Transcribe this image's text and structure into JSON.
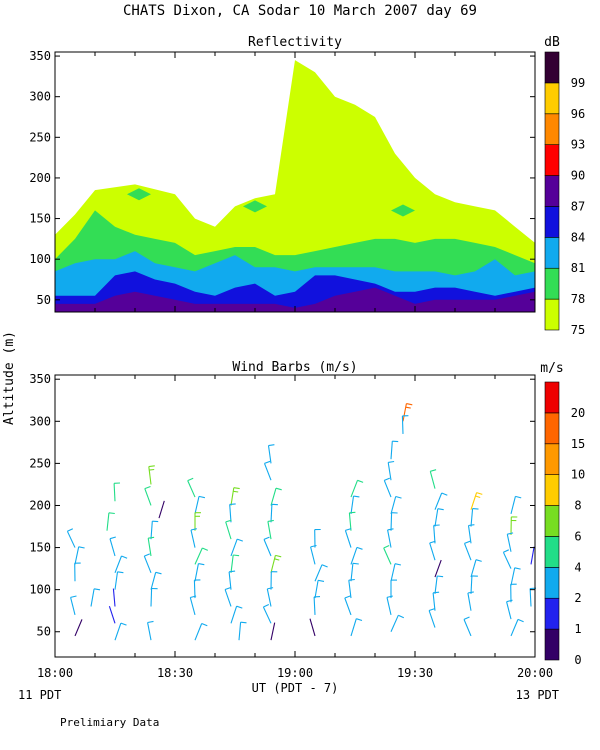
{
  "header": {
    "title": "CHATS Dixon, CA  Sodar  10 March 2007  day  69"
  },
  "shared_axes": {
    "ylabel": "Altitude (m)",
    "xlabel": "UT  (PDT - 7)",
    "x_tick_labels": [
      "18:00",
      "18:30",
      "19:00",
      "19:30",
      "20:00"
    ],
    "x_left_note": "11 PDT",
    "x_right_note": "13 PDT"
  },
  "footer": {
    "note": "Prelimiary Data"
  },
  "chart_data": [
    {
      "type": "heatmap",
      "title": "Reflectivity",
      "x_range": [
        "18:00",
        "20:00"
      ],
      "ylim": [
        35,
        355
      ],
      "y_ticks": [
        50,
        100,
        150,
        200,
        250,
        300,
        350
      ],
      "colorbar": {
        "unit": "dB",
        "levels": [
          75,
          78,
          81,
          84,
          87,
          90,
          93,
          96,
          99
        ],
        "colors": [
          "#ccff00",
          "#33dd55",
          "#11aaee",
          "#1111dd",
          "#550099",
          "#ff0000",
          "#ff8800",
          "#ffcc00",
          "#330033"
        ]
      },
      "contours": [
        {
          "level": 75,
          "x_minutes": [
            0,
            5,
            10,
            20,
            30,
            35,
            40,
            45,
            50,
            55,
            60,
            65,
            70,
            75,
            80,
            85,
            90,
            95,
            100,
            105,
            110,
            115,
            120
          ],
          "top_m": [
            130,
            155,
            185,
            192,
            180,
            150,
            140,
            165,
            175,
            180,
            345,
            330,
            300,
            290,
            275,
            230,
            200,
            180,
            170,
            165,
            160,
            140,
            120
          ]
        },
        {
          "level": 78,
          "x_minutes": [
            0,
            5,
            10,
            15,
            20,
            25,
            30,
            35,
            40,
            45,
            50,
            55,
            60,
            65,
            70,
            75,
            80,
            85,
            90,
            95,
            100,
            105,
            110,
            115,
            120
          ],
          "top_m": [
            100,
            125,
            160,
            140,
            130,
            125,
            120,
            105,
            110,
            115,
            115,
            105,
            105,
            110,
            115,
            120,
            125,
            125,
            120,
            125,
            125,
            120,
            115,
            105,
            95
          ]
        },
        {
          "level": 81,
          "x_minutes": [
            0,
            5,
            10,
            15,
            20,
            25,
            30,
            35,
            40,
            45,
            50,
            55,
            60,
            65,
            70,
            75,
            80,
            85,
            90,
            95,
            100,
            105,
            110,
            115,
            120
          ],
          "top_m": [
            85,
            95,
            100,
            100,
            110,
            95,
            90,
            85,
            95,
            105,
            90,
            90,
            85,
            90,
            90,
            90,
            90,
            85,
            85,
            85,
            80,
            85,
            100,
            80,
            85
          ]
        },
        {
          "level": 84,
          "x_minutes": [
            0,
            5,
            10,
            15,
            20,
            25,
            30,
            35,
            40,
            45,
            50,
            55,
            60,
            65,
            70,
            75,
            80,
            85,
            90,
            95,
            100,
            105,
            110,
            115,
            120
          ],
          "top_m": [
            55,
            55,
            55,
            80,
            85,
            75,
            70,
            60,
            55,
            65,
            70,
            55,
            60,
            80,
            80,
            75,
            70,
            60,
            60,
            65,
            65,
            60,
            55,
            60,
            65
          ]
        },
        {
          "level": 87,
          "x_minutes": [
            0,
            5,
            10,
            15,
            20,
            25,
            30,
            35,
            40,
            45,
            50,
            55,
            60,
            65,
            70,
            75,
            80,
            85,
            90,
            95,
            100,
            105,
            110,
            115,
            120
          ],
          "top_m": [
            45,
            45,
            45,
            55,
            60,
            55,
            50,
            45,
            45,
            45,
            45,
            45,
            40,
            45,
            55,
            60,
            65,
            55,
            45,
            50,
            50,
            50,
            50,
            55,
            60
          ]
        }
      ],
      "islands": [
        {
          "level": 78,
          "x_minutes": 21,
          "y_m": 180
        },
        {
          "level": 78,
          "x_minutes": 50,
          "y_m": 165
        },
        {
          "level": 78,
          "x_minutes": 87,
          "y_m": 160
        }
      ]
    },
    {
      "type": "scatter",
      "subtype": "wind_barbs",
      "title": "Wind Barbs (m/s)",
      "x_range": [
        "18:00",
        "20:00"
      ],
      "ylim": [
        20,
        355
      ],
      "y_ticks": [
        50,
        100,
        150,
        200,
        250,
        300,
        350
      ],
      "colorbar": {
        "unit": "m/s",
        "levels": [
          0,
          1,
          2,
          4,
          6,
          8,
          10,
          15,
          20
        ],
        "colors": [
          "#330066",
          "#2222ee",
          "#11aaee",
          "#22dd88",
          "#77dd22",
          "#ffcc00",
          "#ff9900",
          "#ff6600",
          "#ee0000"
        ]
      },
      "columns_minutes": [
        5,
        10,
        15,
        20,
        25,
        30,
        35,
        40,
        45,
        50,
        55,
        60,
        65,
        70,
        75,
        80,
        85,
        90,
        95,
        100,
        105,
        110,
        115
      ],
      "heights_m": [
        40,
        60,
        80,
        100,
        120,
        140,
        160,
        180,
        200,
        220,
        240,
        260,
        280,
        300
      ],
      "barbs": [
        {
          "x": 5,
          "y": 150,
          "s": 2
        },
        {
          "x": 5,
          "y": 130,
          "s": 2
        },
        {
          "x": 5,
          "y": 110,
          "s": 2
        },
        {
          "x": 5,
          "y": 70,
          "s": 2
        },
        {
          "x": 5,
          "y": 45,
          "s": 0
        },
        {
          "x": 9,
          "y": 80,
          "s": 2
        },
        {
          "x": 15,
          "y": 205,
          "s": 4
        },
        {
          "x": 15,
          "y": 140,
          "s": 2
        },
        {
          "x": 15,
          "y": 120,
          "s": 2
        },
        {
          "x": 15,
          "y": 100,
          "s": 2
        },
        {
          "x": 15,
          "y": 80,
          "s": 1
        },
        {
          "x": 15,
          "y": 60,
          "s": 1
        },
        {
          "x": 15,
          "y": 40,
          "s": 2
        },
        {
          "x": 13,
          "y": 170,
          "s": 4
        },
        {
          "x": 24,
          "y": 225,
          "s": 6
        },
        {
          "x": 24,
          "y": 200,
          "s": 4
        },
        {
          "x": 26,
          "y": 185,
          "s": 0
        },
        {
          "x": 24,
          "y": 160,
          "s": 2
        },
        {
          "x": 24,
          "y": 140,
          "s": 4
        },
        {
          "x": 24,
          "y": 120,
          "s": 2
        },
        {
          "x": 24,
          "y": 100,
          "s": 2
        },
        {
          "x": 24,
          "y": 80,
          "s": 2
        },
        {
          "x": 24,
          "y": 40,
          "s": 2
        },
        {
          "x": 35,
          "y": 210,
          "s": 4
        },
        {
          "x": 35,
          "y": 190,
          "s": 2
        },
        {
          "x": 35,
          "y": 170,
          "s": 6
        },
        {
          "x": 35,
          "y": 150,
          "s": 2
        },
        {
          "x": 35,
          "y": 130,
          "s": 4
        },
        {
          "x": 35,
          "y": 110,
          "s": 2
        },
        {
          "x": 35,
          "y": 90,
          "s": 2
        },
        {
          "x": 35,
          "y": 70,
          "s": 2
        },
        {
          "x": 35,
          "y": 40,
          "s": 2
        },
        {
          "x": 44,
          "y": 200,
          "s": 6
        },
        {
          "x": 44,
          "y": 180,
          "s": 2
        },
        {
          "x": 44,
          "y": 160,
          "s": 4
        },
        {
          "x": 44,
          "y": 140,
          "s": 2
        },
        {
          "x": 44,
          "y": 120,
          "s": 4
        },
        {
          "x": 44,
          "y": 100,
          "s": 2
        },
        {
          "x": 44,
          "y": 80,
          "s": 2
        },
        {
          "x": 44,
          "y": 60,
          "s": 2
        },
        {
          "x": 46,
          "y": 40,
          "s": 2
        },
        {
          "x": 54,
          "y": 250,
          "s": 2
        },
        {
          "x": 54,
          "y": 230,
          "s": 2
        },
        {
          "x": 54,
          "y": 200,
          "s": 4
        },
        {
          "x": 54,
          "y": 180,
          "s": 2
        },
        {
          "x": 54,
          "y": 160,
          "s": 4
        },
        {
          "x": 54,
          "y": 140,
          "s": 2
        },
        {
          "x": 54,
          "y": 120,
          "s": 6
        },
        {
          "x": 54,
          "y": 100,
          "s": 2
        },
        {
          "x": 54,
          "y": 80,
          "s": 2
        },
        {
          "x": 54,
          "y": 60,
          "s": 2
        },
        {
          "x": 54,
          "y": 40,
          "s": 0
        },
        {
          "x": 65,
          "y": 150,
          "s": 2
        },
        {
          "x": 65,
          "y": 130,
          "s": 2
        },
        {
          "x": 65,
          "y": 110,
          "s": 2
        },
        {
          "x": 65,
          "y": 90,
          "s": 2
        },
        {
          "x": 65,
          "y": 70,
          "s": 2
        },
        {
          "x": 65,
          "y": 45,
          "s": 0
        },
        {
          "x": 74,
          "y": 210,
          "s": 4
        },
        {
          "x": 74,
          "y": 190,
          "s": 2
        },
        {
          "x": 74,
          "y": 170,
          "s": 4
        },
        {
          "x": 74,
          "y": 150,
          "s": 2
        },
        {
          "x": 74,
          "y": 130,
          "s": 2
        },
        {
          "x": 74,
          "y": 110,
          "s": 2
        },
        {
          "x": 74,
          "y": 90,
          "s": 2
        },
        {
          "x": 74,
          "y": 70,
          "s": 2
        },
        {
          "x": 74,
          "y": 45,
          "s": 2
        },
        {
          "x": 84,
          "y": 255,
          "s": 2
        },
        {
          "x": 84,
          "y": 230,
          "s": 2
        },
        {
          "x": 84,
          "y": 210,
          "s": 2
        },
        {
          "x": 84,
          "y": 190,
          "s": 2
        },
        {
          "x": 84,
          "y": 170,
          "s": 2
        },
        {
          "x": 84,
          "y": 150,
          "s": 2
        },
        {
          "x": 84,
          "y": 130,
          "s": 4
        },
        {
          "x": 84,
          "y": 110,
          "s": 2
        },
        {
          "x": 84,
          "y": 90,
          "s": 2
        },
        {
          "x": 84,
          "y": 70,
          "s": 2
        },
        {
          "x": 84,
          "y": 50,
          "s": 2
        },
        {
          "x": 87,
          "y": 300,
          "s": 15
        },
        {
          "x": 87,
          "y": 285,
          "s": 2
        },
        {
          "x": 95,
          "y": 220,
          "s": 4
        },
        {
          "x": 95,
          "y": 195,
          "s": 2
        },
        {
          "x": 95,
          "y": 175,
          "s": 2
        },
        {
          "x": 95,
          "y": 155,
          "s": 2
        },
        {
          "x": 95,
          "y": 135,
          "s": 2
        },
        {
          "x": 95,
          "y": 115,
          "s": 0
        },
        {
          "x": 95,
          "y": 95,
          "s": 2
        },
        {
          "x": 95,
          "y": 75,
          "s": 2
        },
        {
          "x": 95,
          "y": 55,
          "s": 2
        },
        {
          "x": 104,
          "y": 195,
          "s": 8
        },
        {
          "x": 104,
          "y": 175,
          "s": 2
        },
        {
          "x": 104,
          "y": 155,
          "s": 2
        },
        {
          "x": 104,
          "y": 135,
          "s": 2
        },
        {
          "x": 104,
          "y": 115,
          "s": 2
        },
        {
          "x": 104,
          "y": 95,
          "s": 2
        },
        {
          "x": 104,
          "y": 75,
          "s": 2
        },
        {
          "x": 104,
          "y": 45,
          "s": 2
        },
        {
          "x": 114,
          "y": 190,
          "s": 2
        },
        {
          "x": 114,
          "y": 165,
          "s": 6
        },
        {
          "x": 114,
          "y": 145,
          "s": 2
        },
        {
          "x": 114,
          "y": 125,
          "s": 2
        },
        {
          "x": 114,
          "y": 105,
          "s": 2
        },
        {
          "x": 114,
          "y": 85,
          "s": 2
        },
        {
          "x": 114,
          "y": 65,
          "s": 2
        },
        {
          "x": 114,
          "y": 45,
          "s": 2
        },
        {
          "x": 119,
          "y": 130,
          "s": 1
        },
        {
          "x": 119,
          "y": 80,
          "s": 2
        }
      ]
    }
  ]
}
